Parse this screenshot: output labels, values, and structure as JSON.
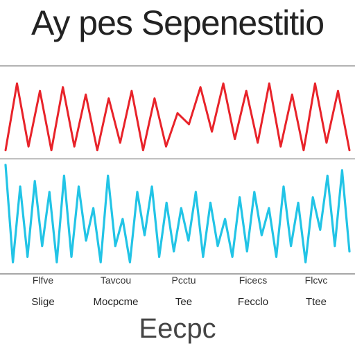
{
  "chart_data": {
    "type": "line",
    "title": "Ay pes Sepenestitio",
    "xlabel": "Eecpc",
    "ylabel": "",
    "x_tick_labels_row1": [
      "Flfve",
      "Tavcou",
      "Pcctu",
      "Ficecs",
      "Flcvc"
    ],
    "x_tick_labels_row2": [
      "Slige",
      "Mocpcme",
      "Tee",
      "Fecclo",
      "Ttee"
    ],
    "grid": false,
    "legend": "none",
    "series": [
      {
        "color": "#e8232a",
        "values": [
          0.05,
          0.95,
          0.1,
          0.85,
          0.05,
          0.9,
          0.1,
          0.8,
          0.05,
          0.75,
          0.15,
          0.85,
          0.05,
          0.75,
          0.1,
          0.55,
          0.4,
          0.9,
          0.3,
          0.95,
          0.2,
          0.85,
          0.15,
          0.95,
          0.1,
          0.8,
          0.05,
          0.95,
          0.15,
          0.85,
          0.05
        ]
      },
      {
        "color": "#22c4e6",
        "values": [
          0.95,
          0.05,
          0.75,
          0.1,
          0.8,
          0.2,
          0.7,
          0.05,
          0.85,
          0.1,
          0.75,
          0.25,
          0.55,
          0.05,
          0.85,
          0.2,
          0.45,
          0.05,
          0.7,
          0.3,
          0.75,
          0.1,
          0.6,
          0.15,
          0.55,
          0.25,
          0.7,
          0.1,
          0.6,
          0.2,
          0.45,
          0.1,
          0.65,
          0.15,
          0.7,
          0.3,
          0.55,
          0.1,
          0.75,
          0.2,
          0.6,
          0.05,
          0.65,
          0.35,
          0.85,
          0.2,
          0.9,
          0.15
        ]
      }
    ]
  }
}
